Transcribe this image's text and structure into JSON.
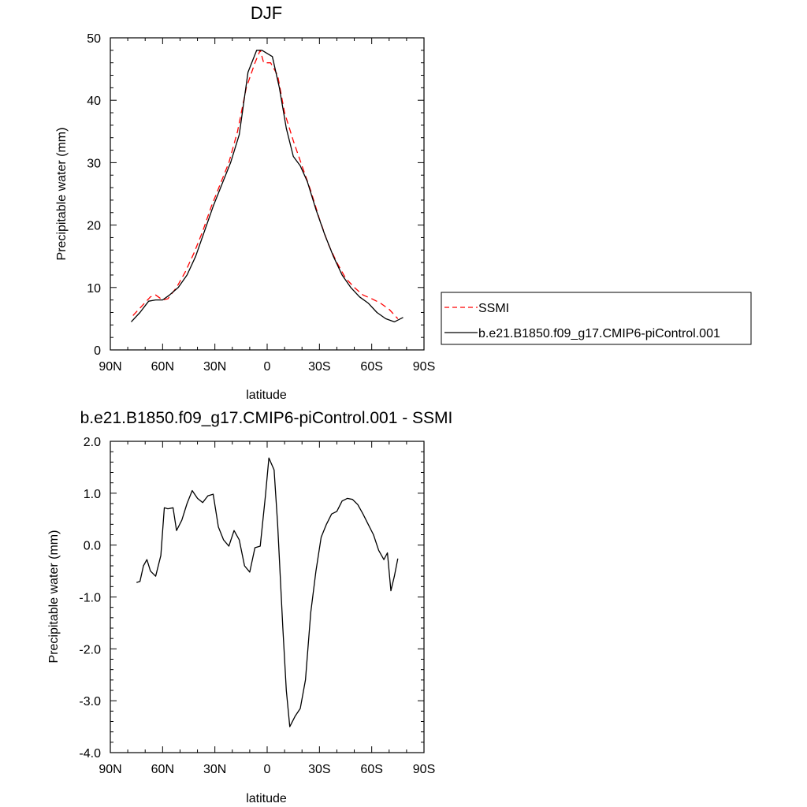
{
  "chart_data": [
    {
      "type": "line",
      "title": "DJF",
      "xlabel": "latitude",
      "ylabel": "Precipitable water (mm)",
      "xlim": [
        90,
        -90
      ],
      "ylim": [
        0,
        50
      ],
      "x_ticks": [
        90,
        60,
        30,
        0,
        -30,
        -60,
        -90
      ],
      "x_tick_labels": [
        "90N",
        "60N",
        "30N",
        "0",
        "30S",
        "60S",
        "90S"
      ],
      "y_ticks": [
        0,
        10,
        20,
        30,
        40,
        50
      ],
      "y_tick_labels": [
        "0",
        "10",
        "20",
        "30",
        "40",
        "50"
      ],
      "grid": false,
      "legend_position": "right",
      "series": [
        {
          "name": "SSMI",
          "color": "#ff0000",
          "dash": "dashed",
          "x": [
            77,
            72,
            67,
            64,
            60,
            57,
            52,
            47,
            42,
            37,
            32,
            27,
            22,
            17,
            12,
            7,
            4,
            2,
            -2,
            -6,
            -10,
            -15,
            -20,
            -25,
            -30,
            -35,
            -40,
            -45,
            -50,
            -55,
            -60,
            -65,
            -70,
            -75
          ],
          "y": [
            5.5,
            7.0,
            8.5,
            8.8,
            8.0,
            8.2,
            10.0,
            12.5,
            15.5,
            19.0,
            23.0,
            26.5,
            30.0,
            35.0,
            42.0,
            46.0,
            48.0,
            46.0,
            46.0,
            44.0,
            38.0,
            33.5,
            29.5,
            25.5,
            21.0,
            17.0,
            14.0,
            11.5,
            10.0,
            8.8,
            8.2,
            7.5,
            6.5,
            5.0
          ]
        },
        {
          "name": "b.e21.B1850.f09_g17.CMIP6-piControl.001",
          "color": "#000000",
          "dash": "solid",
          "x": [
            78,
            73,
            68,
            64,
            60,
            56,
            51,
            46,
            41,
            36,
            31,
            26,
            21,
            16,
            11,
            6,
            3,
            -3,
            -7,
            -11,
            -15,
            -19,
            -23,
            -28,
            -33,
            -38,
            -43,
            -48,
            -53,
            -58,
            -63,
            -68,
            -73,
            -78
          ],
          "y": [
            4.5,
            6.0,
            7.8,
            8.0,
            8.0,
            8.8,
            10.0,
            12.0,
            15.0,
            19.0,
            23.0,
            26.5,
            30.0,
            34.5,
            44.5,
            48.0,
            48.0,
            47.0,
            42.0,
            35.5,
            31.0,
            29.5,
            27.0,
            22.5,
            18.5,
            15.0,
            12.0,
            10.0,
            8.5,
            7.5,
            6.0,
            5.0,
            4.5,
            5.2
          ]
        }
      ]
    },
    {
      "type": "line",
      "title": "b.e21.B1850.f09_g17.CMIP6-piControl.001 - SSMI",
      "xlabel": "latitude",
      "ylabel": "Precipitable water (mm)",
      "xlim": [
        90,
        -90
      ],
      "ylim": [
        -4.0,
        2.0
      ],
      "x_ticks": [
        90,
        60,
        30,
        0,
        -30,
        -60,
        -90
      ],
      "x_tick_labels": [
        "90N",
        "60N",
        "30N",
        "0",
        "30S",
        "60S",
        "90S"
      ],
      "y_ticks": [
        -4,
        -3,
        -2,
        -1,
        0,
        1,
        2
      ],
      "y_tick_labels": [
        "-4.0",
        "-3.0",
        "-2.0",
        "-1.0",
        "0.0",
        "1.0",
        "2.0"
      ],
      "grid": false,
      "series": [
        {
          "color": "#000000",
          "dash": "solid",
          "x": [
            75,
            73,
            71,
            69,
            67,
            64,
            61,
            59,
            57,
            54,
            52,
            49,
            46,
            43,
            40,
            37,
            34,
            31,
            28,
            25,
            22,
            19,
            16,
            13,
            10,
            7,
            4,
            1,
            -1,
            -4,
            -6,
            -9,
            -11,
            -13,
            -16,
            -19,
            -22,
            -25,
            -28,
            -31,
            -34,
            -37,
            -40,
            -43,
            -46,
            -49,
            -52,
            -55,
            -58,
            -61,
            -64,
            -67,
            -69,
            -71,
            -73,
            -75
          ],
          "y": [
            -0.72,
            -0.7,
            -0.4,
            -0.28,
            -0.5,
            -0.6,
            -0.2,
            0.72,
            0.7,
            0.72,
            0.28,
            0.48,
            0.8,
            1.05,
            0.9,
            0.82,
            0.95,
            0.98,
            0.35,
            0.1,
            -0.02,
            0.28,
            0.1,
            -0.4,
            -0.52,
            -0.05,
            -0.02,
            0.95,
            1.68,
            1.45,
            0.4,
            -1.6,
            -2.8,
            -3.5,
            -3.3,
            -3.15,
            -2.6,
            -1.3,
            -0.5,
            0.15,
            0.4,
            0.6,
            0.65,
            0.85,
            0.9,
            0.88,
            0.78,
            0.6,
            0.4,
            0.2,
            -0.1,
            -0.28,
            -0.15,
            -0.88,
            -0.6,
            -0.26
          ]
        }
      ]
    }
  ]
}
